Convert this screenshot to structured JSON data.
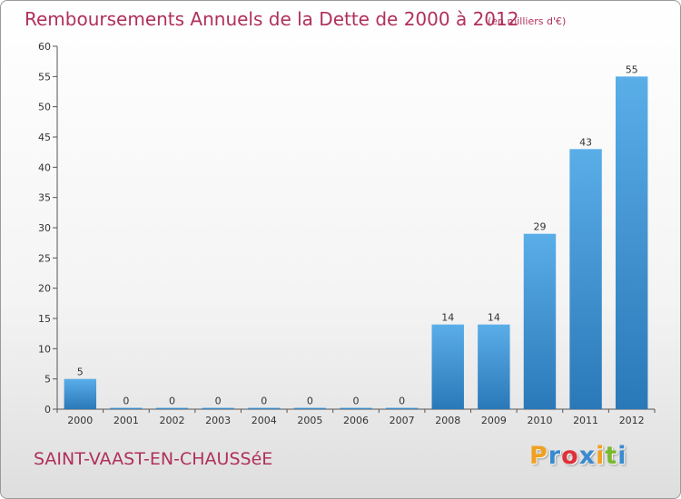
{
  "chart_data": {
    "type": "bar",
    "title": "Remboursements Annuels de la Dette de 2000 à 2012",
    "unit": "(en milliers d'€)",
    "categories": [
      "2000",
      "2001",
      "2002",
      "2003",
      "2004",
      "2005",
      "2006",
      "2007",
      "2008",
      "2009",
      "2010",
      "2011",
      "2012"
    ],
    "values": [
      5,
      0,
      0,
      0,
      0,
      0,
      0,
      0,
      14,
      14,
      29,
      43,
      55
    ],
    "ylim": [
      0,
      60
    ],
    "yticks": [
      0,
      5,
      10,
      15,
      20,
      25,
      30,
      35,
      40,
      45,
      50,
      55,
      60
    ],
    "grid": false,
    "legend": "none",
    "bar_color_light": "#5aaee8",
    "bar_color_dark": "#2a78b8",
    "axis_color": "#555555"
  },
  "footer": {
    "commune": "SAINT-VAAST-EN-CHAUSSéE",
    "logo_letters": [
      {
        "ch": "P",
        "color": "#f0a020"
      },
      {
        "ch": "r",
        "color": "#3a8ad0"
      },
      {
        "ch": "o",
        "color": "#e0303a"
      },
      {
        "ch": "x",
        "color": "#3a8ad0"
      },
      {
        "ch": "i",
        "color": "#f0a020"
      },
      {
        "ch": "t",
        "color": "#7ab830"
      },
      {
        "ch": "i",
        "color": "#3a8ad0"
      }
    ]
  }
}
